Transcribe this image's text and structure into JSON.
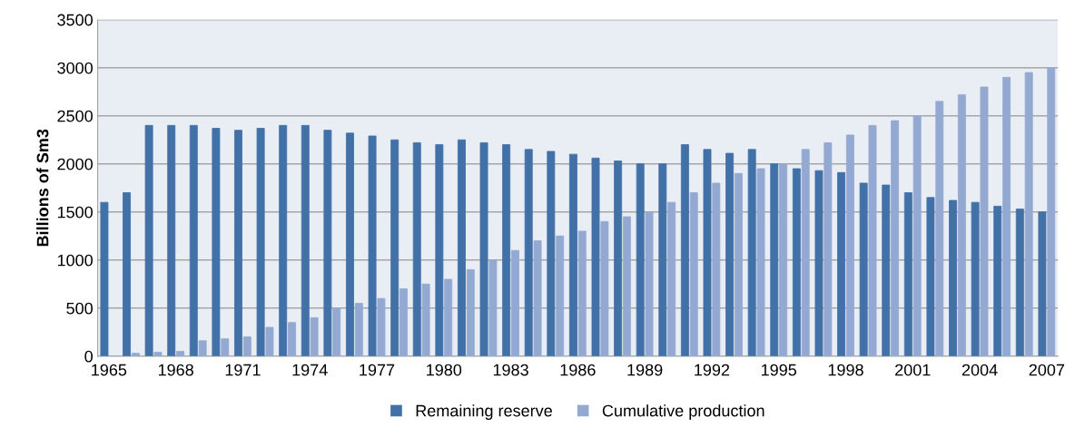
{
  "chart_data": {
    "type": "bar",
    "ylabel": "Billions of Sm3",
    "categories": [
      "1965",
      null,
      null,
      "1968",
      null,
      null,
      "1971",
      null,
      null,
      "1974",
      null,
      null,
      "1977",
      null,
      null,
      "1980",
      null,
      null,
      "1983",
      null,
      null,
      "1986",
      null,
      null,
      "1989",
      null,
      null,
      "1992",
      null,
      null,
      "1995",
      null,
      null,
      "1998",
      null,
      null,
      "2001",
      null,
      null,
      "2004",
      null,
      null,
      "2007"
    ],
    "series": [
      {
        "name": "Remaining reserve",
        "color": "#4271a8",
        "values": [
          1600,
          1700,
          2400,
          2400,
          2400,
          2370,
          2350,
          2370,
          2400,
          2400,
          2350,
          2320,
          2290,
          2250,
          2220,
          2200,
          2250,
          2220,
          2200,
          2150,
          2130,
          2100,
          2060,
          2030,
          2000,
          2000,
          2200,
          2150,
          2110,
          2150,
          2000,
          1950,
          1930,
          1910,
          1800,
          1780,
          1700,
          1650,
          1620,
          1600,
          1560,
          1530,
          1500
        ]
      },
      {
        "name": "Cumulative production",
        "color": "#94a9d2",
        "values": [
          0,
          30,
          40,
          50,
          160,
          180,
          200,
          300,
          350,
          400,
          500,
          550,
          600,
          700,
          750,
          800,
          900,
          1000,
          1100,
          1200,
          1250,
          1300,
          1400,
          1450,
          1500,
          1600,
          1700,
          1800,
          1900,
          1950,
          2000,
          2150,
          2220,
          2300,
          2400,
          2450,
          2500,
          2650,
          2720,
          2800,
          2900,
          2950,
          3000
        ]
      }
    ],
    "ylim": [
      0,
      3500
    ],
    "yticks": [
      0,
      500,
      1000,
      1500,
      2000,
      2500,
      3000,
      3500
    ],
    "grid": "y",
    "legend": "bottom"
  }
}
